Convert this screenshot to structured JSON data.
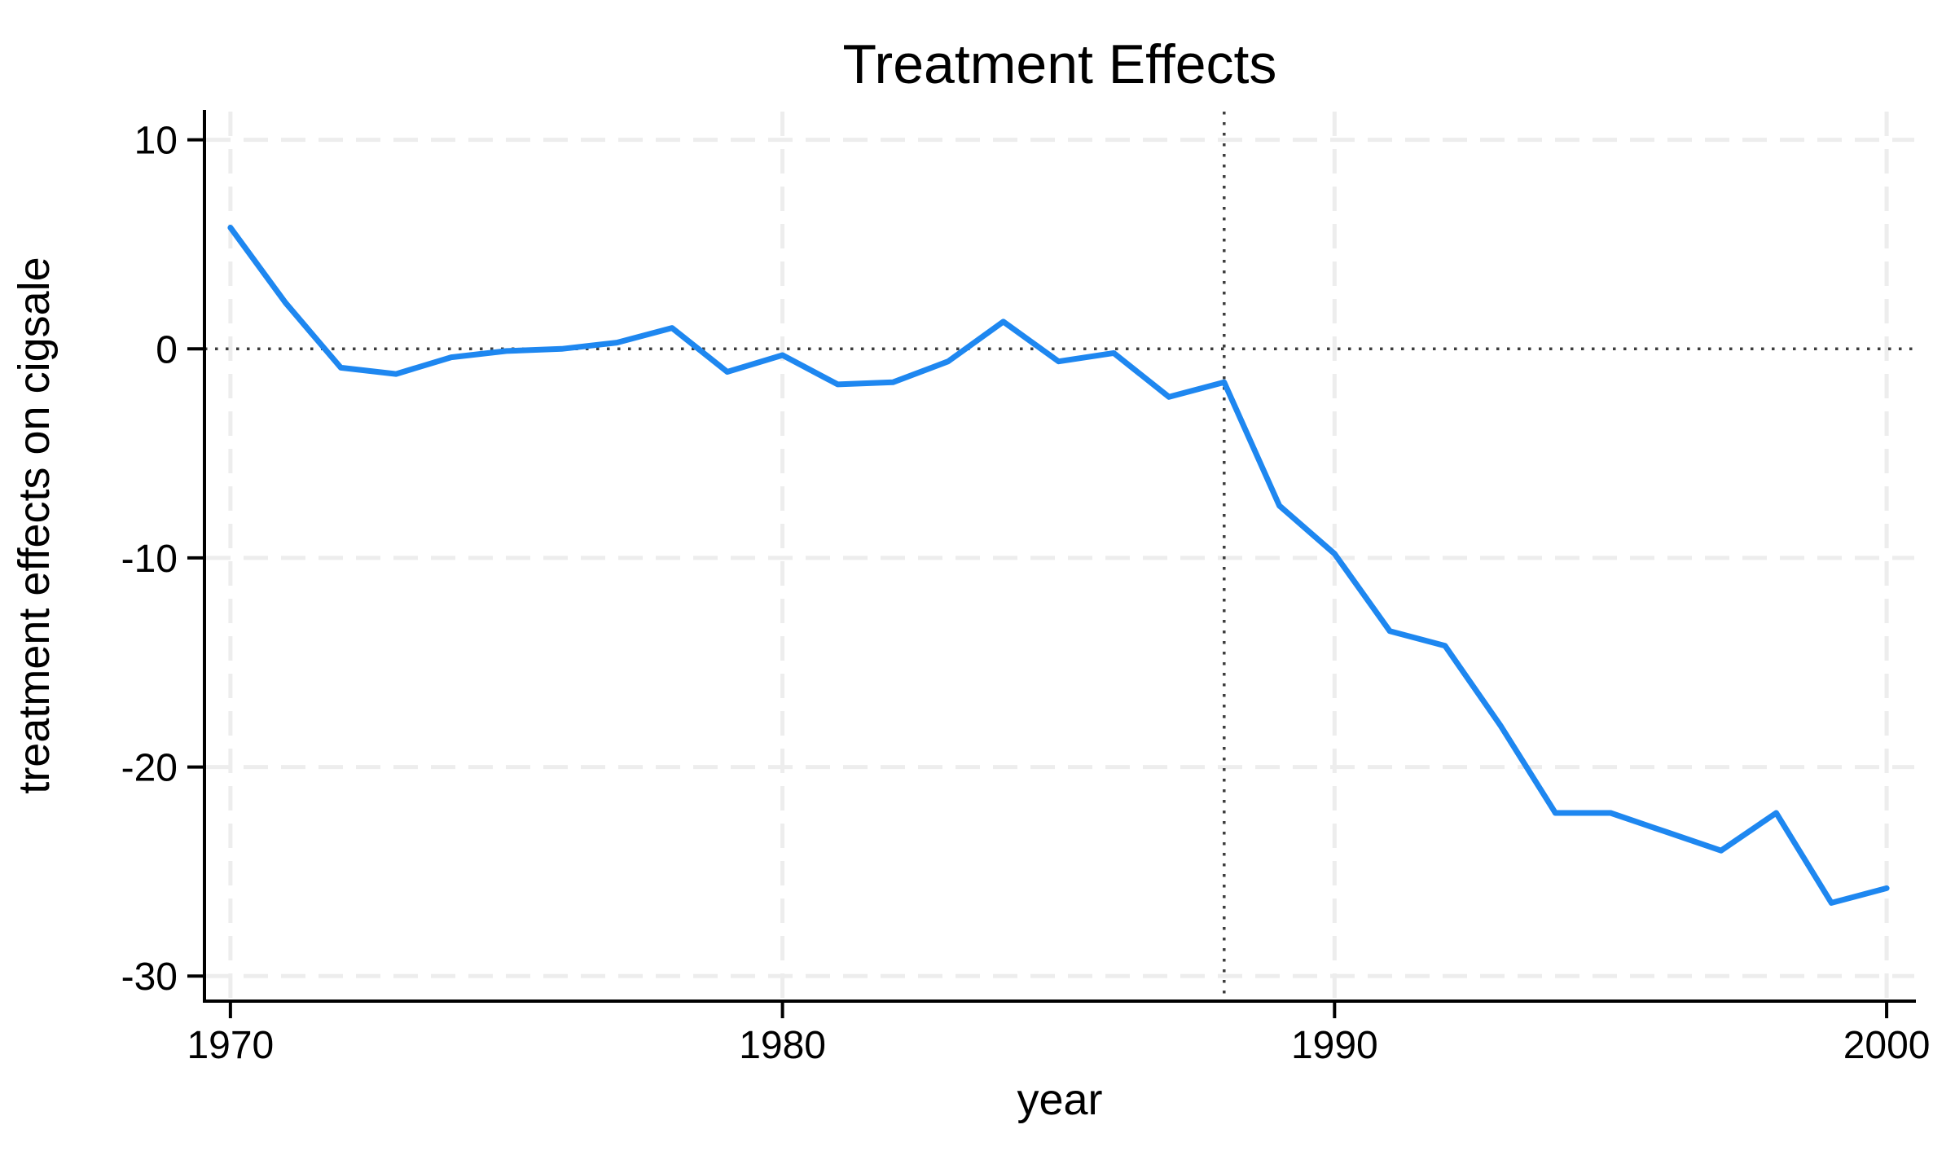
{
  "title": "Treatment Effects",
  "chart_data": {
    "type": "line",
    "title": "Treatment Effects",
    "xlabel": "year",
    "ylabel": "treatment effects on cigsale",
    "x": [
      1970,
      1971,
      1972,
      1973,
      1974,
      1975,
      1976,
      1977,
      1978,
      1979,
      1980,
      1981,
      1982,
      1983,
      1984,
      1985,
      1986,
      1987,
      1988,
      1989,
      1990,
      1991,
      1992,
      1993,
      1994,
      1995,
      1996,
      1997,
      1998,
      1999,
      2000
    ],
    "series": [
      {
        "name": "treatment effect on cigsale",
        "values": [
          5.8,
          2.2,
          -0.9,
          -1.2,
          -0.4,
          -0.1,
          0.0,
          0.3,
          1.0,
          -1.1,
          -0.3,
          -1.7,
          -1.6,
          -0.6,
          1.3,
          -0.6,
          -0.2,
          -2.3,
          -1.6,
          -7.5,
          -9.8,
          -13.5,
          -14.2,
          -18.0,
          -22.2,
          -22.2,
          -23.1,
          -24.0,
          -22.2,
          -26.5,
          -25.8
        ]
      }
    ],
    "xticks": [
      1970,
      1980,
      1990,
      2000
    ],
    "yticks": [
      10,
      0,
      -10,
      -20,
      -30
    ],
    "xlim": [
      1969.53,
      2000.53
    ],
    "ylim": [
      -31.2,
      11.35
    ],
    "grid": true,
    "legend": "none",
    "reference_lines": {
      "zero_hline_y": 0,
      "treatment_vline_x": 1988
    },
    "colors": {
      "line": "#1e87f0",
      "grid": "#ededed",
      "reference": "#3d3d3d",
      "axis": "#000000",
      "background": "#ffffff"
    }
  }
}
